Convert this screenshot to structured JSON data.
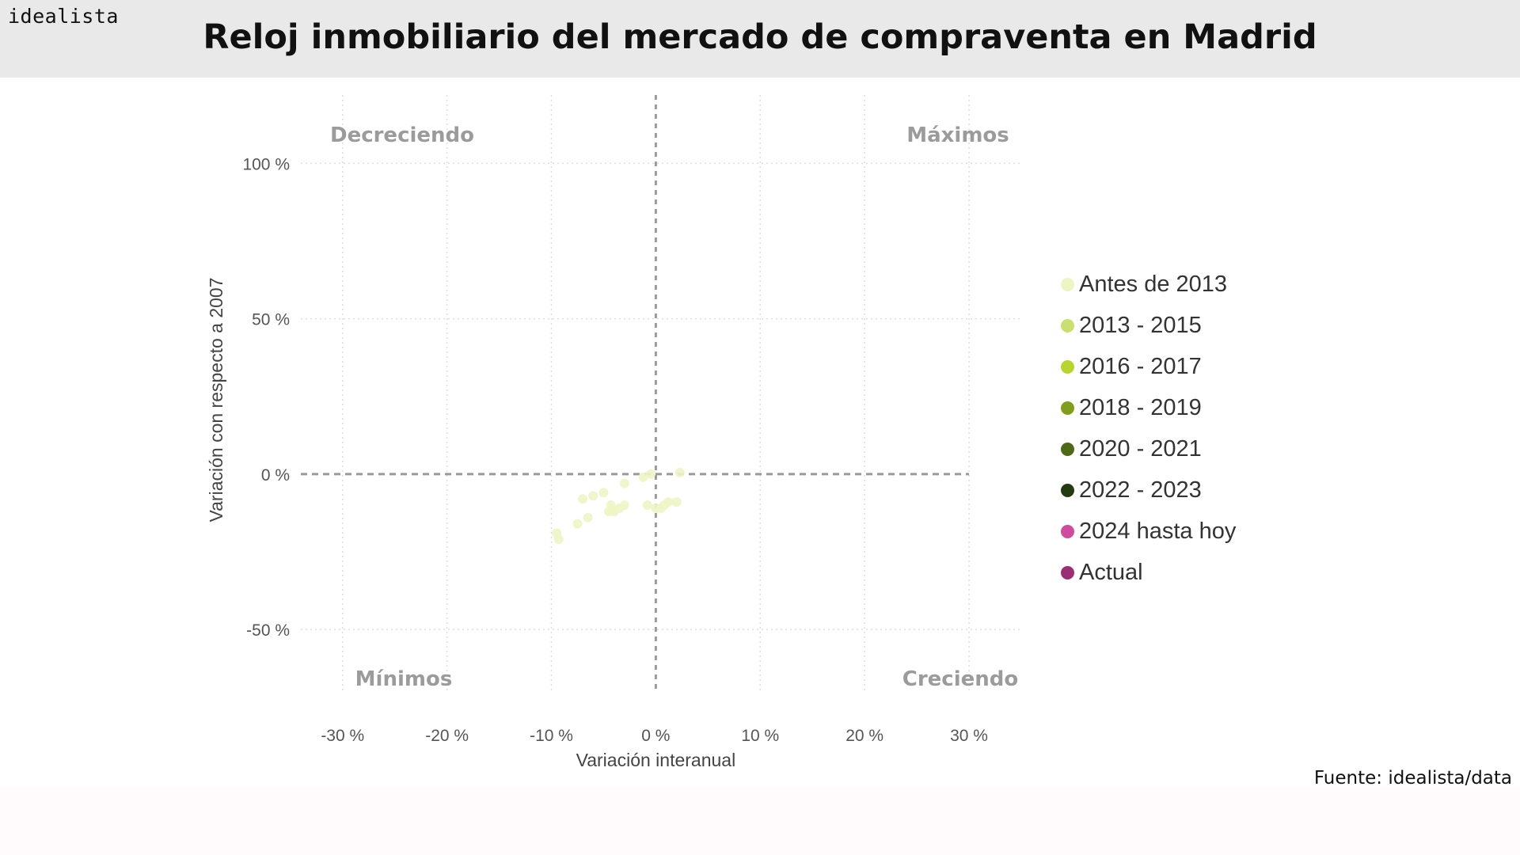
{
  "header": {
    "brand": "idealista",
    "title": "Reloj inmobiliario del mercado de compraventa en Madrid"
  },
  "footer": {
    "source": "Fuente: idealista/data"
  },
  "colors": {
    "header_bg": "#e9e9e9",
    "grid": "#dddddd",
    "zero_line": "#9a9a9a",
    "quadrant_label": "#9b9b9b",
    "tick_label": "#555555"
  },
  "chart_data": {
    "type": "scatter",
    "title": "Reloj inmobiliario del mercado de compraventa en Madrid",
    "xlabel": "Variación interanual",
    "ylabel": "Variación con respecto a 2007",
    "xlim": [
      -34,
      35
    ],
    "ylim": [
      -78,
      122
    ],
    "x_ticks": [
      -30,
      -20,
      -10,
      0,
      10,
      20,
      30
    ],
    "x_tick_labels": [
      "-30 %",
      "-20 %",
      "-10 %",
      "0 %",
      "10 %",
      "20 %",
      "30 %"
    ],
    "y_ticks": [
      100,
      50,
      0,
      -50
    ],
    "y_tick_labels": [
      "100 %",
      "50 %",
      "0 %",
      "-50 %"
    ],
    "grid": true,
    "legend_position": "right",
    "quadrant_labels": {
      "top_left": "Decreciendo",
      "top_right": "Máximos",
      "bottom_left": "Mínimos",
      "bottom_right": "Creciendo"
    },
    "legend": [
      {
        "label": "Antes de 2013",
        "color": "#eef5c4"
      },
      {
        "label": "2013 - 2015",
        "color": "#c9e06f"
      },
      {
        "label": "2016 - 2017",
        "color": "#b6d62e"
      },
      {
        "label": "2018 - 2019",
        "color": "#7f9f1a"
      },
      {
        "label": "2020 - 2021",
        "color": "#4f6a17"
      },
      {
        "label": "2022 - 2023",
        "color": "#243a10"
      },
      {
        "label": "2024 hasta hoy",
        "color": "#d04a9e"
      },
      {
        "label": "Actual",
        "color": "#9b2f74"
      }
    ],
    "series": [
      {
        "name": "Antes de 2013",
        "points": [
          {
            "x": -9.5,
            "y": -19
          },
          {
            "x": -9.3,
            "y": -21
          },
          {
            "x": -7.5,
            "y": -16
          },
          {
            "x": -7,
            "y": -8
          },
          {
            "x": -6.5,
            "y": -14
          },
          {
            "x": -6,
            "y": -7
          },
          {
            "x": -5,
            "y": -6
          },
          {
            "x": -4.5,
            "y": -12
          },
          {
            "x": -4.3,
            "y": -10
          },
          {
            "x": -4,
            "y": -12
          },
          {
            "x": -3.5,
            "y": -11
          },
          {
            "x": -3,
            "y": -10
          },
          {
            "x": -3,
            "y": -3
          },
          {
            "x": -1.2,
            "y": -1
          },
          {
            "x": -0.8,
            "y": -10
          },
          {
            "x": -0.5,
            "y": 0
          },
          {
            "x": 0,
            "y": -11
          },
          {
            "x": 0.5,
            "y": -11
          },
          {
            "x": 0.8,
            "y": -10
          },
          {
            "x": 1.2,
            "y": -9
          },
          {
            "x": 2,
            "y": -9
          },
          {
            "x": 2.3,
            "y": 0.5
          }
        ]
      }
    ]
  }
}
